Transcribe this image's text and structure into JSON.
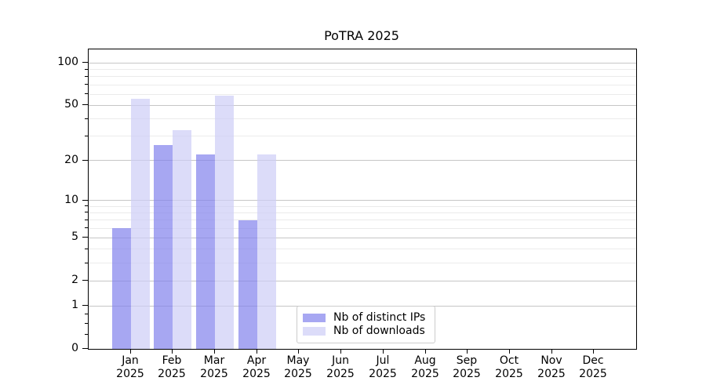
{
  "title": "PoTRA 2025",
  "colors": {
    "distinct_ips_bar": "rgba(130,130,237,0.7)",
    "downloads_bar": "rgba(205,205,247,0.7)",
    "grid_major": "#c6c6c6",
    "grid_minor": "#ebebeb",
    "axis_frame": "#000000",
    "legend_border": "#cccccc"
  },
  "legend": {
    "items": [
      {
        "label": "Nb of distinct IPs",
        "color_key": "distinct_ips_bar"
      },
      {
        "label": "Nb of downloads",
        "color_key": "downloads_bar"
      }
    ]
  },
  "axes": {
    "y_tick_labels": [
      "100",
      "50",
      "20",
      "10",
      "5",
      "2",
      "1",
      "0"
    ],
    "x_year_line": "2025"
  },
  "chart_data": {
    "type": "bar",
    "title": "PoTRA 2025",
    "categories": [
      "Jan 2025",
      "Feb 2025",
      "Mar 2025",
      "Apr 2025",
      "May 2025",
      "Jun 2025",
      "Jul 2025",
      "Aug 2025",
      "Sep 2025",
      "Oct 2025",
      "Nov 2025",
      "Dec 2025"
    ],
    "month_labels": [
      "Jan",
      "Feb",
      "Mar",
      "Apr",
      "May",
      "Jun",
      "Jul",
      "Aug",
      "Sep",
      "Oct",
      "Nov",
      "Dec"
    ],
    "series": [
      {
        "name": "Nb of distinct IPs",
        "values": [
          6,
          26,
          22,
          7,
          0,
          0,
          0,
          0,
          0,
          0,
          0,
          0
        ]
      },
      {
        "name": "Nb of downloads",
        "values": [
          56,
          33,
          59,
          22,
          0,
          0,
          0,
          0,
          0,
          0,
          0,
          0
        ]
      }
    ],
    "xlabel": "",
    "ylabel": "",
    "yscale": "log1p",
    "ylim": [
      0,
      125
    ],
    "y_major_ticks": [
      0,
      1,
      2,
      5,
      10,
      20,
      50,
      100
    ],
    "y_minor_ticks": [
      0.25,
      0.5,
      0.75,
      3,
      4,
      6,
      7,
      8,
      9,
      30,
      40,
      60,
      70,
      80,
      90
    ],
    "grid": "horizontal",
    "legend_position": "lower center"
  }
}
